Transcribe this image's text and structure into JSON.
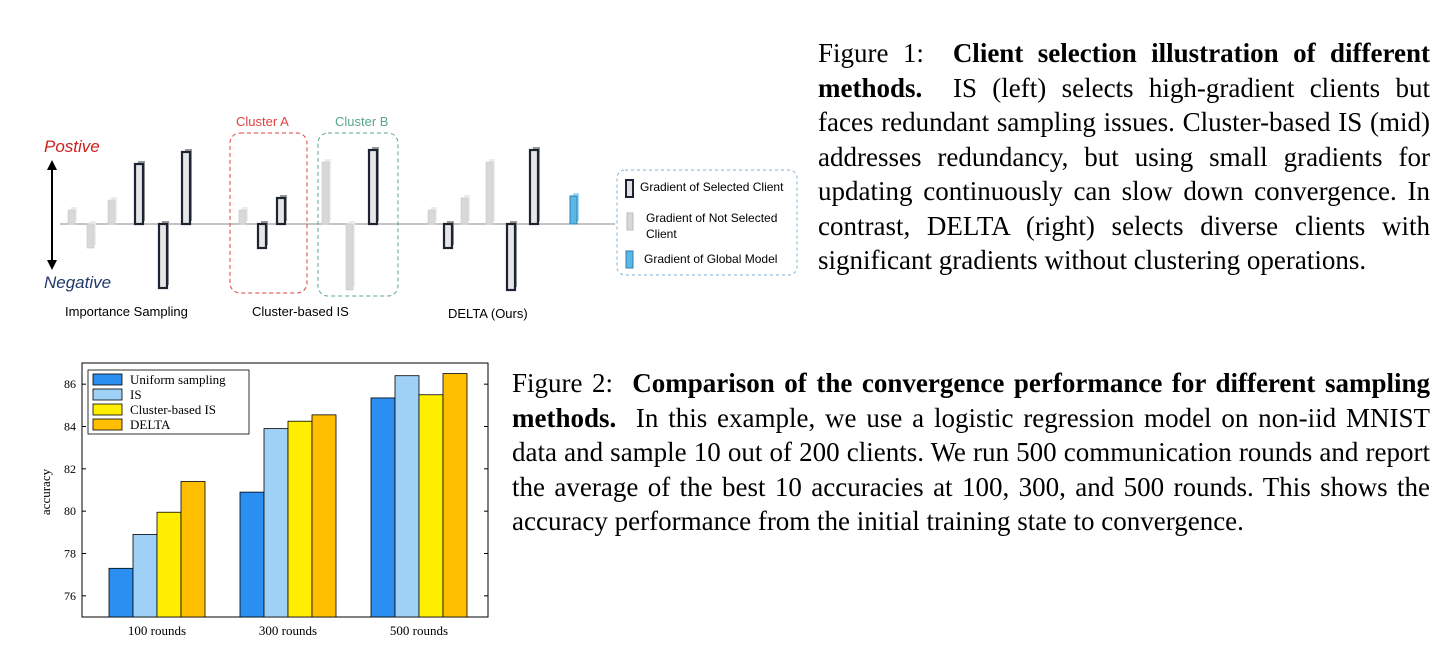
{
  "figure1": {
    "label_positive": "Postive",
    "label_negative": "Negative",
    "cluster_a": "Cluster A",
    "cluster_b": "Cluster B",
    "panel_labels": [
      "Importance Sampling",
      "Cluster-based IS",
      "DELTA (Ours)"
    ],
    "legend": {
      "selected": "Gradient of Selected Client",
      "not_selected_line1": "Gradient of Not Selected",
      "not_selected_line2": "Client",
      "global": "Gradient of Global Model"
    },
    "colors": {
      "positive_label": "#cc1f1f",
      "negative_label": "#1f3a6b",
      "cluster_a": "#e04040",
      "cluster_b": "#5aa68a",
      "selected_bar": "#1c2333",
      "not_selected_bar": "#d8d8d8",
      "global_bar": "#5bb7e5"
    }
  },
  "caption1": {
    "label": "Figure 1:",
    "title": "Client selection illustration of different methods.",
    "body": "IS (left) selects high-gradient clients but faces redundant sampling issues. Cluster-based IS (mid) addresses redundancy, but using small gradients for updating continuously can slow down convergence. In contrast, DELTA (right) selects diverse clients with significant gradients without clustering operations."
  },
  "caption2": {
    "label": "Figure 2:",
    "title": "Comparison of the convergence performance for different sampling methods.",
    "body": "In this example, we use a logistic regression model on non-iid MNIST data and sample 10 out of 200 clients. We run 500 communication rounds and report the average of the best 10 accuracies at 100, 300, and 500 rounds. This shows the accuracy performance from the initial training state to convergence."
  },
  "chart_data": {
    "type": "bar",
    "categories": [
      "100 rounds",
      "300 rounds",
      "500 rounds"
    ],
    "series": [
      {
        "name": "Uniform sampling",
        "values": [
          77.3,
          80.9,
          85.35
        ],
        "color": "#2a8ff0"
      },
      {
        "name": "IS",
        "values": [
          78.9,
          83.9,
          86.4
        ],
        "color": "#9fd0f5"
      },
      {
        "name": "Cluster-based IS",
        "values": [
          79.95,
          84.25,
          85.5
        ],
        "color": "#ffee00"
      },
      {
        "name": "DELTA",
        "values": [
          81.4,
          84.55,
          86.5
        ],
        "color": "#ffbf00"
      }
    ],
    "ylabel": "accuracy",
    "ylim": [
      75,
      87
    ],
    "yticks": [
      "76",
      "78",
      "80",
      "82",
      "84",
      "86"
    ],
    "legend_position": "top-left",
    "grid": false
  }
}
